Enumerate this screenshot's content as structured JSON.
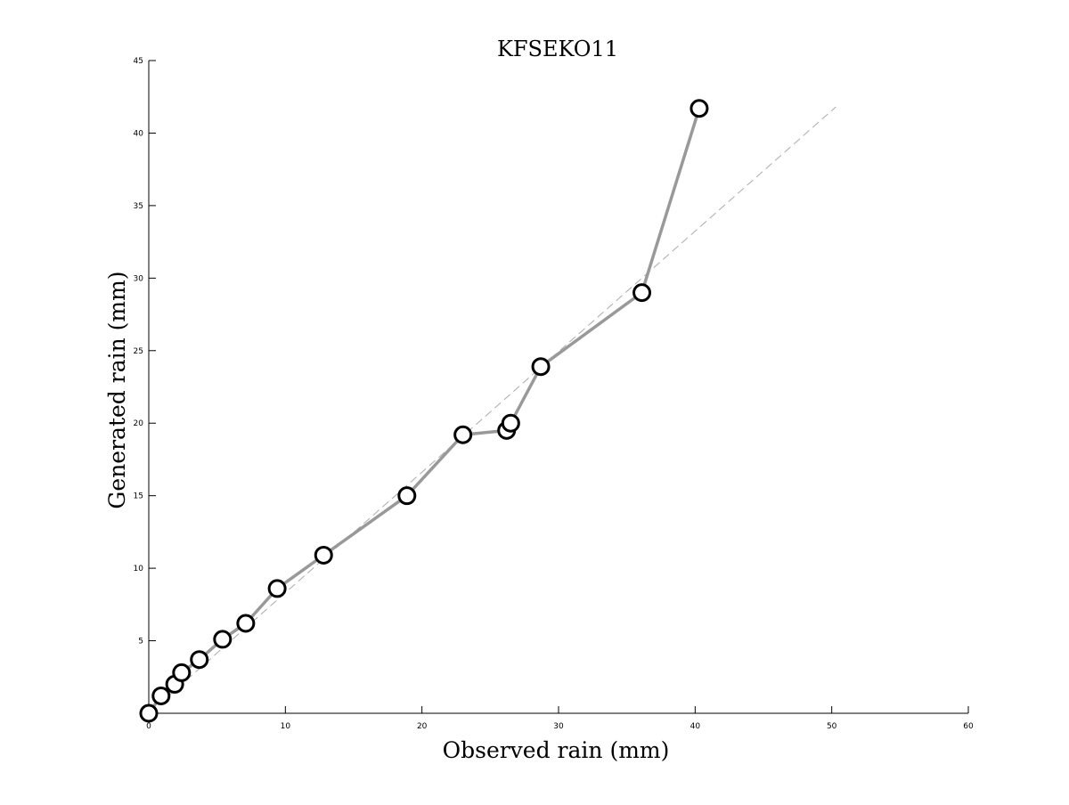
{
  "chart_data": {
    "type": "scatter",
    "title": "KFSEKO11",
    "xlabel": "Observed rain (mm)",
    "ylabel": "Generated rain (mm)",
    "xlim": [
      0,
      60
    ],
    "ylim": [
      0,
      45
    ],
    "xticks": [
      0,
      10,
      20,
      30,
      40,
      50,
      60
    ],
    "yticks": [
      5,
      10,
      15,
      20,
      25,
      30,
      35,
      40,
      45
    ],
    "grid": false,
    "legend": "none",
    "series": [
      {
        "x": [
          0.0,
          0.9,
          1.9,
          2.4,
          3.7,
          5.4,
          7.1,
          9.4,
          12.8,
          18.9,
          23.0,
          26.2,
          26.5,
          28.7,
          36.1,
          40.3
        ],
        "y": [
          0.0,
          1.2,
          2.0,
          2.8,
          3.7,
          5.1,
          6.2,
          8.6,
          10.9,
          15.0,
          19.2,
          19.5,
          20.0,
          23.9,
          29.0,
          41.7
        ],
        "line_color": "#999999",
        "marker": "circle",
        "marker_edge_color": "#000000",
        "marker_face_color": "#ffffff"
      }
    ],
    "reference_line": {
      "style": "dashed",
      "color": "#aaaaaa",
      "x": [
        0,
        50.3
      ],
      "y": [
        0,
        41.8
      ]
    }
  }
}
